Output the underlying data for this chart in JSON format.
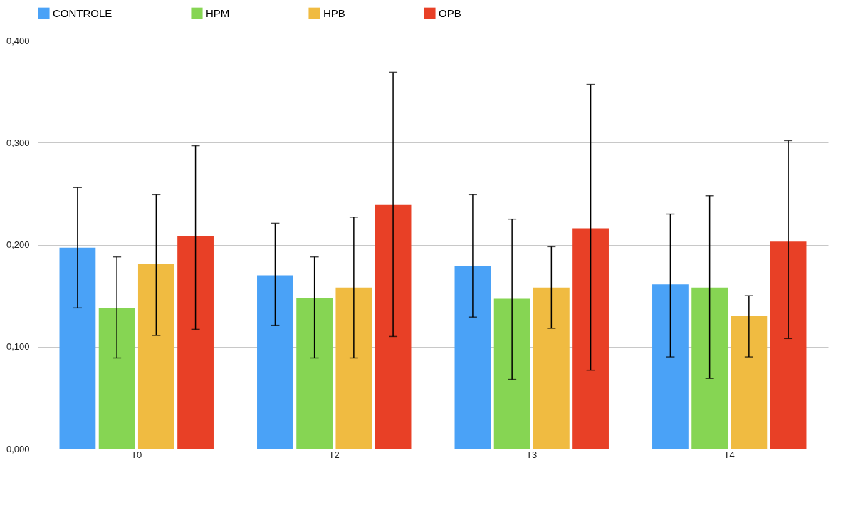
{
  "chart_data": {
    "type": "bar",
    "categories": [
      "T0",
      "T2",
      "T3",
      "T4"
    ],
    "ylim": [
      0,
      0.4
    ],
    "yticks": [
      {
        "value": 0,
        "label": "0,000"
      },
      {
        "value": 0.1,
        "label": "0,100"
      },
      {
        "value": 0.2,
        "label": "0,200"
      },
      {
        "value": 0.3,
        "label": "0,300"
      },
      {
        "value": 0.4,
        "label": "0,400"
      }
    ],
    "grid": "y",
    "legend": "top",
    "series": [
      {
        "name": "CONTROLE",
        "color": "#4aa2f7",
        "values": [
          0.197,
          0.17,
          0.179,
          0.161
        ],
        "errors": [
          [
            0.138,
            0.256
          ],
          [
            0.121,
            0.221
          ],
          [
            0.129,
            0.249
          ],
          [
            0.09,
            0.23
          ]
        ]
      },
      {
        "name": "HPM",
        "color": "#86d553",
        "values": [
          0.138,
          0.148,
          0.147,
          0.158
        ],
        "errors": [
          [
            0.089,
            0.188
          ],
          [
            0.089,
            0.188
          ],
          [
            0.068,
            0.225
          ],
          [
            0.069,
            0.248
          ]
        ]
      },
      {
        "name": "HPB",
        "color": "#f0bb41",
        "values": [
          0.181,
          0.158,
          0.158,
          0.13
        ],
        "errors": [
          [
            0.111,
            0.249
          ],
          [
            0.089,
            0.227
          ],
          [
            0.118,
            0.198
          ],
          [
            0.09,
            0.15
          ]
        ]
      },
      {
        "name": "OPB",
        "color": "#e84026",
        "values": [
          0.208,
          0.239,
          0.216,
          0.203
        ],
        "errors": [
          [
            0.117,
            0.297
          ],
          [
            0.11,
            0.369
          ],
          [
            0.077,
            0.357
          ],
          [
            0.108,
            0.302
          ]
        ]
      }
    ]
  }
}
